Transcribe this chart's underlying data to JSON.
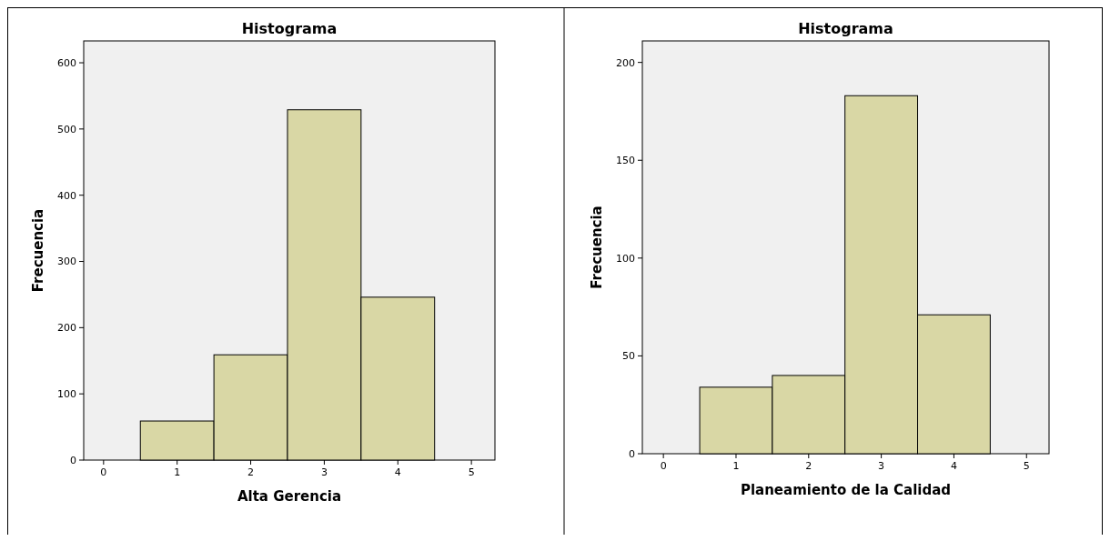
{
  "chart_data": [
    {
      "type": "histogram",
      "title": "Histograma",
      "xlabel": "Alta Gerencia",
      "ylabel": "Frecuencia",
      "color": "#d9d7a5",
      "bins": [
        0.5,
        1.5,
        2.5,
        3.5,
        4.5
      ],
      "values": [
        59,
        159,
        529,
        246
      ],
      "xlim": [
        -0.27,
        5.32
      ],
      "xticks": [
        0,
        1,
        2,
        3,
        4,
        5
      ],
      "ylim": [
        0,
        633
      ],
      "yticks": [
        0,
        100,
        200,
        300,
        400,
        500,
        600
      ]
    },
    {
      "type": "histogram",
      "title": "Histograma",
      "xlabel": "Planeamiento de la Calidad",
      "ylabel": "Frecuencia",
      "color": "#d9d7a5",
      "bins": [
        0.5,
        1.5,
        2.5,
        3.5,
        4.5
      ],
      "values": [
        34,
        40,
        183,
        71
      ],
      "xlim": [
        -0.29,
        5.31
      ],
      "xticks": [
        0,
        1,
        2,
        3,
        4,
        5
      ],
      "ylim": [
        0,
        211
      ],
      "yticks": [
        0,
        50,
        100,
        150,
        200
      ]
    }
  ]
}
